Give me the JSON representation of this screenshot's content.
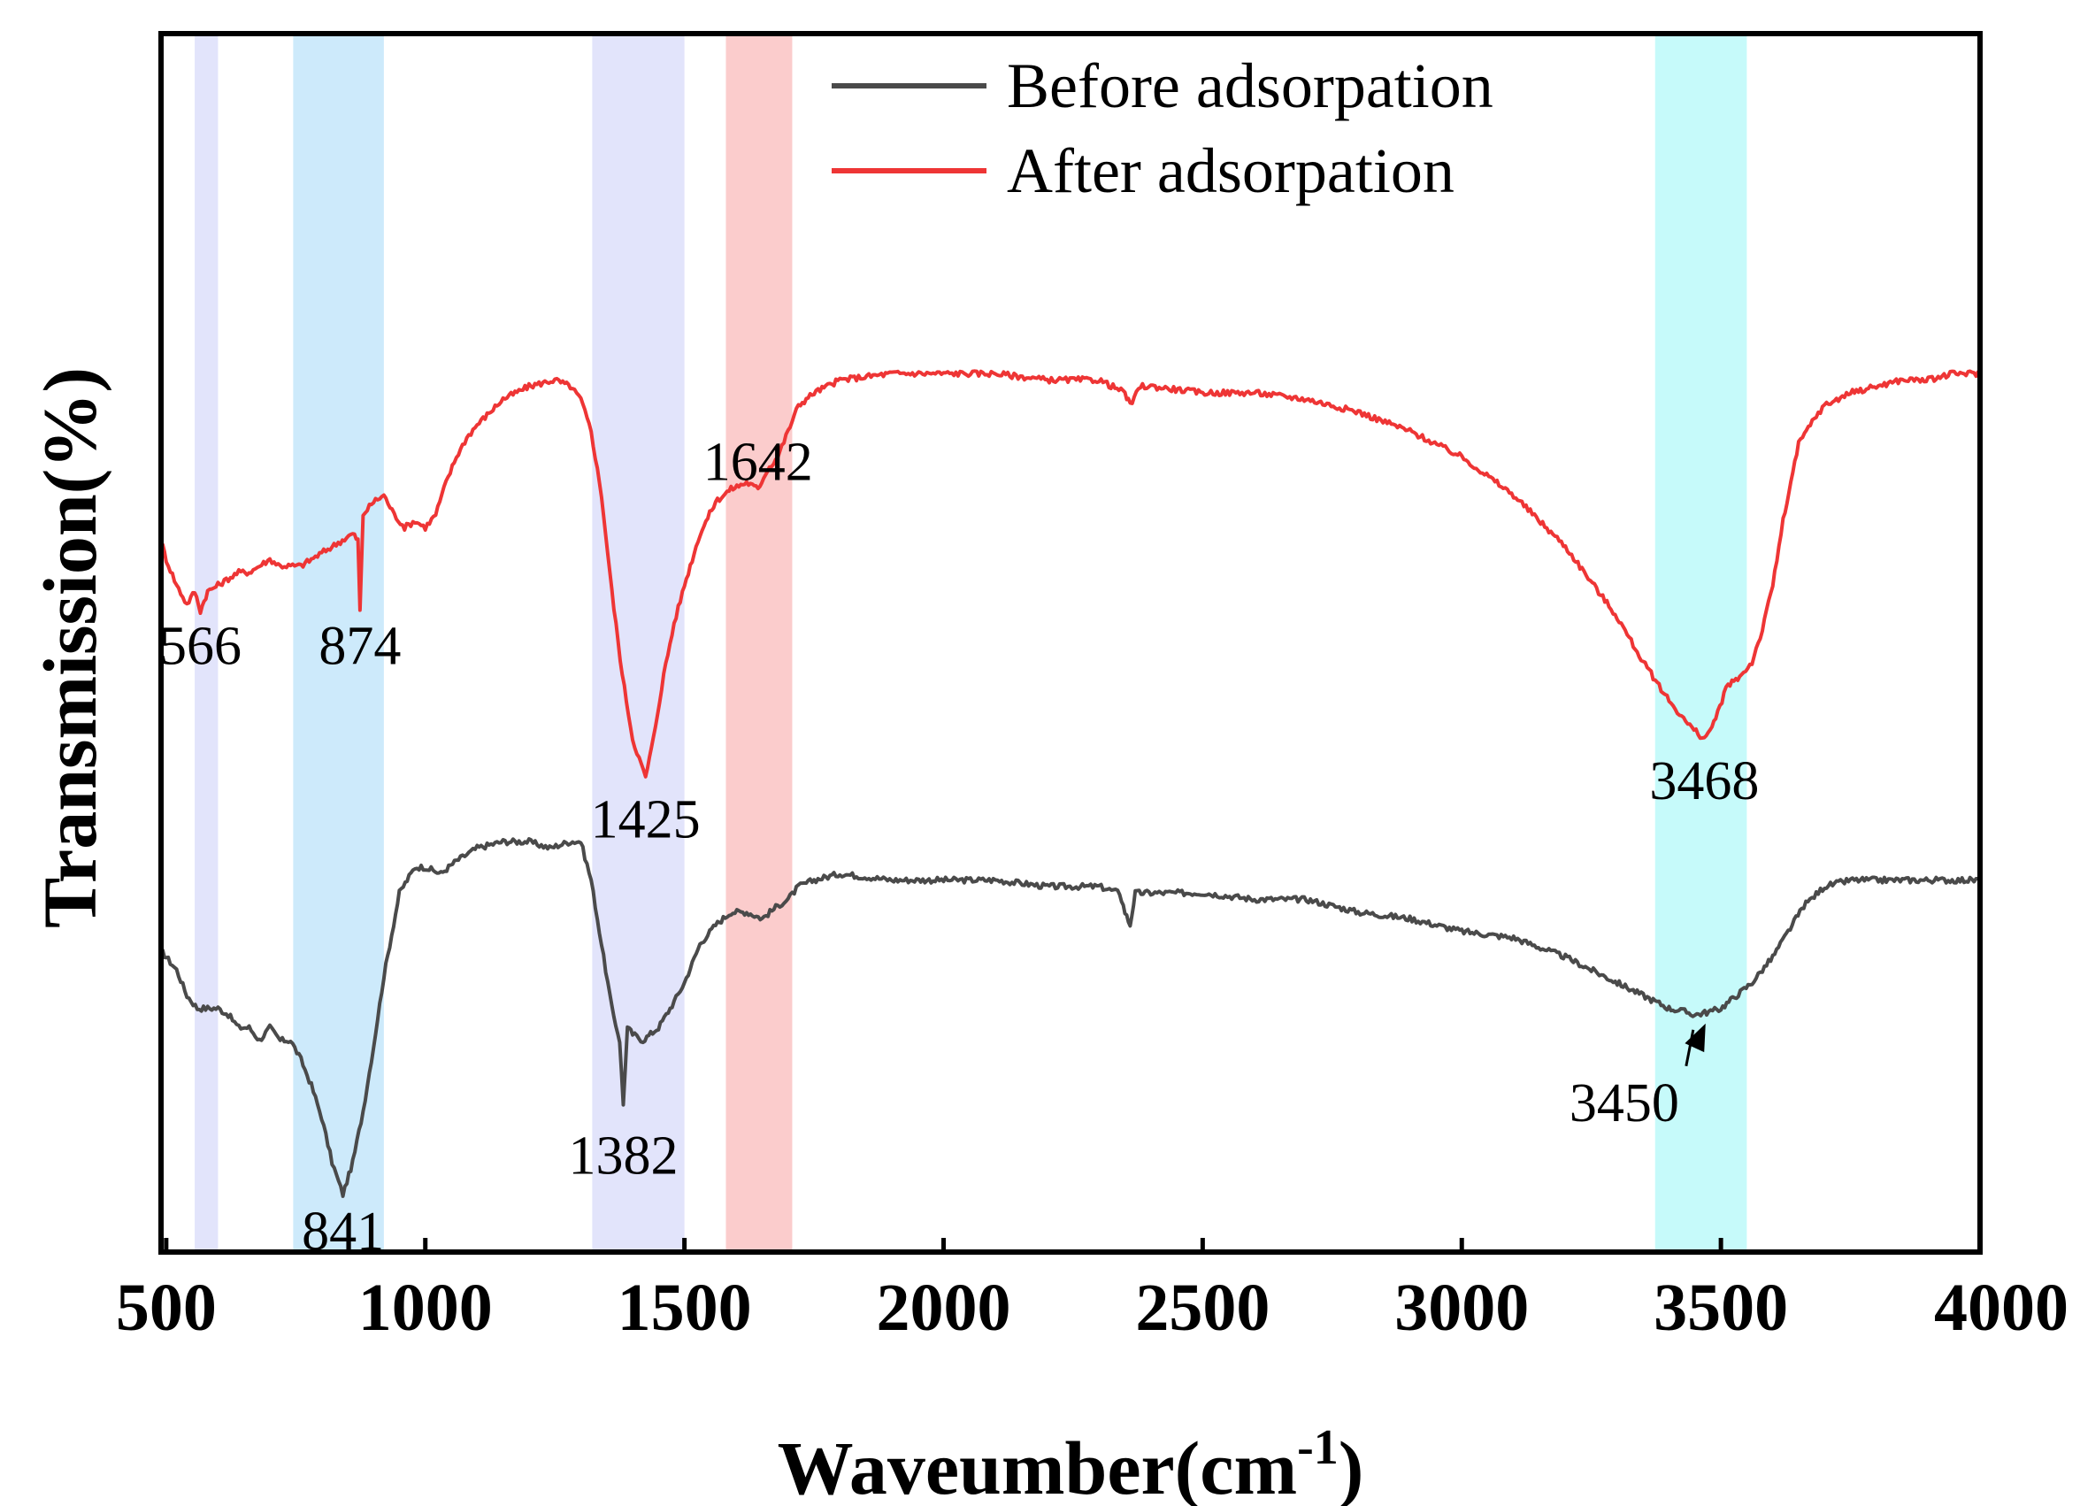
{
  "chart_data": {
    "type": "line",
    "title": "",
    "xlabel": "Waveumber(cm",
    "xlabel_superscript": "-1",
    "xlabel_suffix": ")",
    "ylabel": "Transmission(%)",
    "xlim": [
      490,
      4000
    ],
    "x_ticks": [
      500,
      1000,
      1500,
      2000,
      2500,
      3000,
      3500,
      4000
    ],
    "y_ticks_shown": false,
    "grid": false,
    "legend_position": "top-center",
    "colors": {
      "before": "#4a4a4a",
      "after": "#ee3535",
      "band_lavender": "#e2e4fb",
      "band_blue": "#cdeafb",
      "band_red": "#fbcccc",
      "band_cyan": "#c6fafa"
    },
    "highlight_bands": [
      {
        "from": 555,
        "to": 600,
        "color": "#e2e4fb"
      },
      {
        "from": 745,
        "to": 920,
        "color": "#cdeafb"
      },
      {
        "from": 1322,
        "to": 1500,
        "color": "#e2e4fb"
      },
      {
        "from": 1580,
        "to": 1708,
        "color": "#fbcccc"
      },
      {
        "from": 3373,
        "to": 3550,
        "color": "#c6fafa"
      }
    ],
    "series": [
      {
        "name": "Before adsorpation",
        "color": "#4a4a4a",
        "x": [
          490,
          500,
          520,
          540,
          560,
          580,
          600,
          620,
          640,
          660,
          680,
          700,
          720,
          740,
          760,
          780,
          800,
          820,
          841,
          860,
          880,
          900,
          920,
          950,
          980,
          1000,
          1030,
          1060,
          1100,
          1150,
          1200,
          1240,
          1280,
          1300,
          1320,
          1340,
          1360,
          1375,
          1382,
          1390,
          1400,
          1420,
          1450,
          1480,
          1500,
          1530,
          1560,
          1590,
          1620,
          1650,
          1680,
          1700,
          1720,
          1750,
          1800,
          1900,
          2000,
          2100,
          2200,
          2300,
          2340,
          2350,
          2360,
          2370,
          2400,
          2500,
          2600,
          2700,
          2800,
          2900,
          3000,
          3100,
          3200,
          3250,
          3300,
          3350,
          3400,
          3430,
          3450,
          3480,
          3500,
          3530,
          3560,
          3600,
          3630,
          3660,
          3700,
          3750,
          3800,
          3850,
          3900,
          3950,
          4000
        ],
        "y": [
          47,
          46,
          44,
          40,
          38,
          38,
          38,
          37,
          35,
          35,
          33,
          35,
          33,
          33,
          30,
          26,
          21,
          14,
          9,
          14,
          22,
          32,
          43,
          56,
          60,
          60,
          59,
          61,
          63,
          64,
          64,
          63,
          64,
          64,
          58,
          48,
          38,
          33,
          23,
          35,
          34,
          33,
          35,
          39,
          42,
          48,
          51,
          53,
          53,
          52,
          54,
          55,
          57,
          58,
          59,
          58,
          58,
          58,
          57,
          57,
          56,
          53,
          51,
          56,
          56,
          56,
          55,
          55,
          53,
          52,
          50,
          49,
          46,
          44,
          42,
          40,
          38,
          37.5,
          37,
          37.5,
          38,
          40,
          42,
          46,
          50,
          54,
          57,
          58,
          58,
          58,
          58,
          58,
          58
        ]
      },
      {
        "name": "After adsorpation",
        "color": "#ee3535",
        "x": [
          490,
          500,
          520,
          540,
          555,
          566,
          580,
          600,
          620,
          640,
          660,
          680,
          700,
          720,
          740,
          760,
          780,
          800,
          820,
          840,
          860,
          870,
          874,
          880,
          900,
          920,
          940,
          960,
          980,
          1000,
          1020,
          1040,
          1060,
          1080,
          1100,
          1150,
          1200,
          1250,
          1280,
          1300,
          1320,
          1340,
          1360,
          1380,
          1400,
          1425,
          1440,
          1460,
          1480,
          1500,
          1530,
          1560,
          1590,
          1620,
          1642,
          1660,
          1680,
          1700,
          1720,
          1750,
          1800,
          1900,
          2000,
          2100,
          2200,
          2300,
          2350,
          2360,
          2380,
          2400,
          2500,
          2600,
          2700,
          2800,
          2900,
          3000,
          3100,
          3200,
          3300,
          3350,
          3400,
          3440,
          3468,
          3490,
          3510,
          3540,
          3560,
          3580,
          3600,
          3620,
          3650,
          3680,
          3700,
          3750,
          3800,
          3850,
          3900,
          3950,
          4000
        ],
        "y": [
          111,
          108,
          104,
          101,
          103,
          100,
          103,
          104,
          105,
          106,
          106,
          107,
          108,
          107,
          107,
          107,
          108,
          109,
          110,
          111,
          112,
          111,
          100,
          115,
          117,
          118,
          115,
          113,
          114,
          113,
          115,
          120,
          124,
          127,
          129,
          133,
          135,
          136,
          135,
          133,
          128,
          118,
          103,
          90,
          80,
          74,
          80,
          90,
          98,
          104,
          112,
          117,
          119,
          120,
          119,
          122,
          124,
          128,
          132,
          134,
          136,
          137,
          137,
          137,
          136,
          136,
          134,
          132,
          135,
          135,
          134,
          134,
          133,
          131,
          128,
          124,
          118,
          110,
          99,
          92,
          86,
          82,
          80,
          83,
          88,
          90,
          92,
          97,
          104,
          114,
          126,
          130,
          132,
          134,
          135,
          136,
          136,
          137,
          137
        ]
      }
    ],
    "annotations": [
      {
        "text": "566",
        "series": "After adsorpation",
        "x": 566
      },
      {
        "text": "874",
        "series": "After adsorpation",
        "x": 874
      },
      {
        "text": "1425",
        "series": "After adsorpation",
        "x": 1425
      },
      {
        "text": "1642",
        "series": "After adsorpation",
        "x": 1642
      },
      {
        "text": "3468",
        "series": "After adsorpation",
        "x": 3468
      },
      {
        "text": "841",
        "series": "Before adsorpation",
        "x": 841
      },
      {
        "text": "1382",
        "series": "Before adsorpation",
        "x": 1382
      },
      {
        "text": "3450",
        "series": "Before adsorpation",
        "x": 3450,
        "arrow": true
      }
    ]
  }
}
